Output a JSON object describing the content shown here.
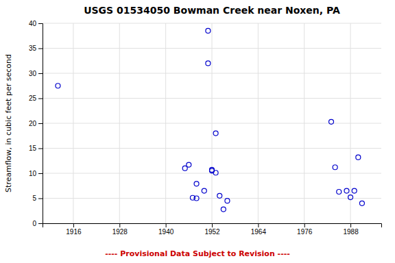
{
  "chart_data": {
    "type": "scatter",
    "title": "USGS 01534050 Bowman Creek near Noxen, PA",
    "ylabel": "Streamflow, in cubic feet per second",
    "x": [
      1912,
      1945,
      1946,
      1947,
      1948,
      1948,
      1950,
      1951,
      1951,
      1952,
      1952,
      1953,
      1953,
      1954,
      1955,
      1956,
      1983,
      1984,
      1985,
      1987,
      1988,
      1989,
      1990,
      1991
    ],
    "values": [
      27.5,
      11.0,
      11.7,
      5.1,
      5.0,
      7.9,
      6.5,
      32.0,
      38.5,
      10.5,
      10.7,
      18.0,
      10.1,
      5.5,
      2.8,
      4.5,
      20.3,
      11.2,
      6.3,
      6.5,
      5.2,
      6.5,
      13.2,
      4.0
    ],
    "color": "#0000cc",
    "marker": "circle",
    "xlim": [
      1908,
      1996
    ],
    "ylim": [
      0,
      40
    ],
    "xticks": [
      1916,
      1928,
      1940,
      1952,
      1964,
      1976,
      1988
    ],
    "yticks": [
      0,
      5,
      10,
      15,
      20,
      25,
      30,
      35,
      40
    ],
    "grid": true,
    "annotations": [
      {
        "text": "---- Provisional Data Subject to Revision ----",
        "color": "#cc0000"
      }
    ]
  }
}
